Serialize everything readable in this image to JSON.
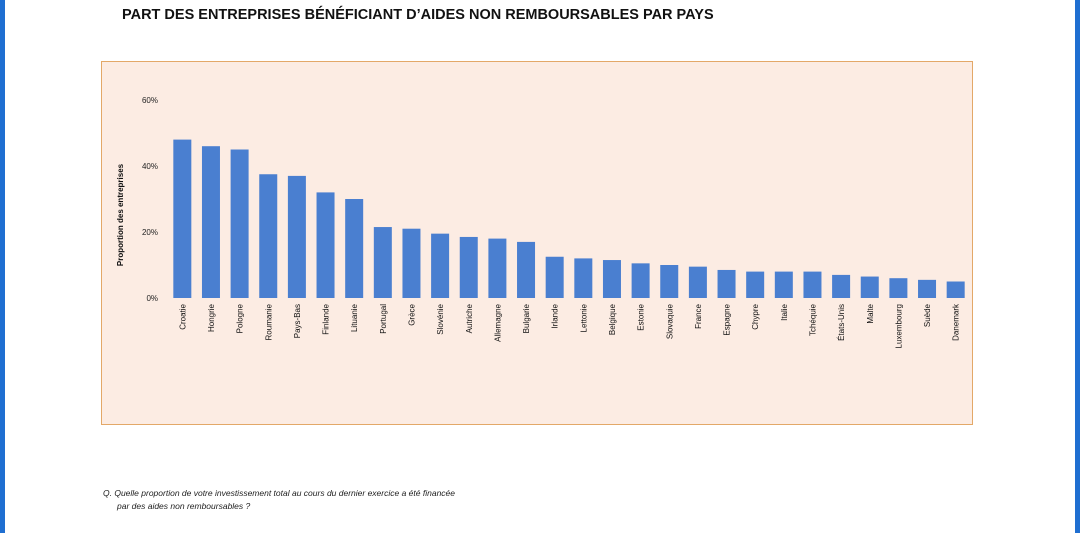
{
  "title": "PART DES ENTREPRISES BÉNÉFICIANT D’AIDES NON REMBOURSABLES PAR PAYS",
  "footnote": {
    "line1": "Q. Quelle proportion de votre investissement total au cours du dernier exercice a été financée",
    "line2": "par des aides non remboursables ?"
  },
  "colors": {
    "bar": "#4a7fd0",
    "chart_background": "#fcece3",
    "chart_border": "#e3a868",
    "edge": "#1f6fd1"
  },
  "chart_data": {
    "type": "bar",
    "title": "PART DES ENTREPRISES BÉNÉFICIANT D’AIDES NON REMBOURSABLES PAR PAYS",
    "ylabel": "Proportion des entreprises",
    "xlabel": "",
    "ylim": [
      0,
      60
    ],
    "yticks": [
      0,
      20,
      40,
      60
    ],
    "ytick_labels": [
      "0%",
      "20%",
      "40%",
      "60%"
    ],
    "grid": false,
    "categories": [
      "Croatie",
      "Hongrie",
      "Pologne",
      "Roumanie",
      "Pays-Bas",
      "Finlande",
      "Lituanie",
      "Portugal",
      "Grèce",
      "Slovénie",
      "Autriche",
      "Allemagne",
      "Bulgarie",
      "Irlande",
      "Lettonie",
      "Belgique",
      "Estonie",
      "Slovaquie",
      "France",
      "Espagne",
      "Chypre",
      "Italie",
      "Tchéquie",
      "États-Unis",
      "Malte",
      "Luxembourg",
      "Suède",
      "Danemark"
    ],
    "values": [
      48,
      46,
      45,
      37.5,
      37,
      32,
      30,
      21.5,
      21,
      19.5,
      18.5,
      18,
      17,
      12.5,
      12,
      11.5,
      10.5,
      10,
      9.5,
      8.5,
      8,
      8,
      8,
      7,
      6.5,
      6,
      5.5,
      5
    ]
  }
}
